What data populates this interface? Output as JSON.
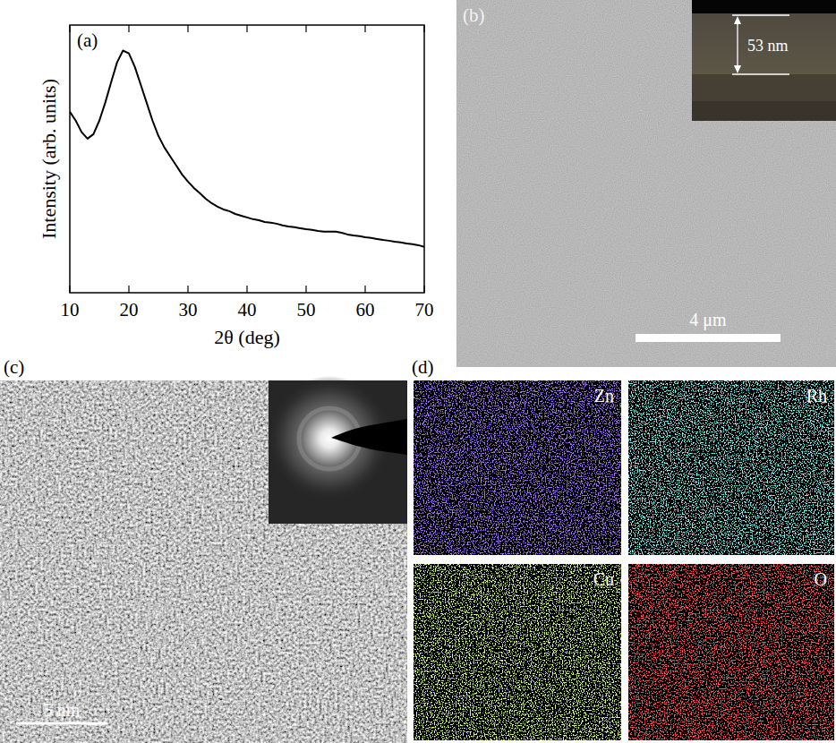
{
  "chart_data": {
    "type": "line",
    "title": "(a)",
    "xlabel": "2θ (deg)",
    "ylabel": "Intensity (arb. units)",
    "x": [
      10,
      11,
      12,
      13,
      14,
      15,
      16,
      17,
      18,
      19,
      20,
      21,
      22,
      23,
      24,
      25,
      26,
      27,
      28,
      29,
      30,
      31,
      32,
      33,
      34,
      35,
      36,
      37,
      38,
      39,
      40,
      41,
      42,
      43,
      44,
      45,
      46,
      47,
      48,
      49,
      50,
      51,
      52,
      53,
      54,
      55,
      56,
      57,
      58,
      59,
      60,
      61,
      62,
      63,
      64,
      65,
      66,
      67,
      68,
      69,
      70
    ],
    "values": [
      72.4,
      68.8,
      64.2,
      61.6,
      63.4,
      68.8,
      76.0,
      84.2,
      92.1,
      96.8,
      95.7,
      90.3,
      83.2,
      76.0,
      68.8,
      62.7,
      58.1,
      54.5,
      50.9,
      47.3,
      44.4,
      41.9,
      39.8,
      37.6,
      35.8,
      34.4,
      33.3,
      32.6,
      31.5,
      30.8,
      30.1,
      29.4,
      29.0,
      28.3,
      28.0,
      27.6,
      26.9,
      26.5,
      26.2,
      25.8,
      25.4,
      25.1,
      24.7,
      24.4,
      24.4,
      24.4,
      24.0,
      23.3,
      22.9,
      22.6,
      22.2,
      21.9,
      21.5,
      21.1,
      20.8,
      20.4,
      20.1,
      19.7,
      19.4,
      19.0,
      18.3
    ],
    "color": "#000000",
    "xlim": [
      10,
      70
    ],
    "xticks": [
      10,
      20,
      30,
      40,
      50,
      60,
      70
    ],
    "ylim": [
      0,
      107
    ],
    "tick_labels": "x"
  },
  "panels": [
    {
      "label": "(b)",
      "inset_label": "53 nm",
      "scale_bar": "4 μm"
    },
    {
      "label": "(c)",
      "scale_bar": "5 nm"
    },
    {
      "label": "(d)",
      "maps": [
        {
          "element": "Zn",
          "color": "#5b2fe0"
        },
        {
          "element": "Rh",
          "color": "#3fd8d8"
        },
        {
          "element": "Cu",
          "color": "#a6f03a"
        },
        {
          "element": "O",
          "color": "#e61c1c"
        }
      ]
    }
  ]
}
